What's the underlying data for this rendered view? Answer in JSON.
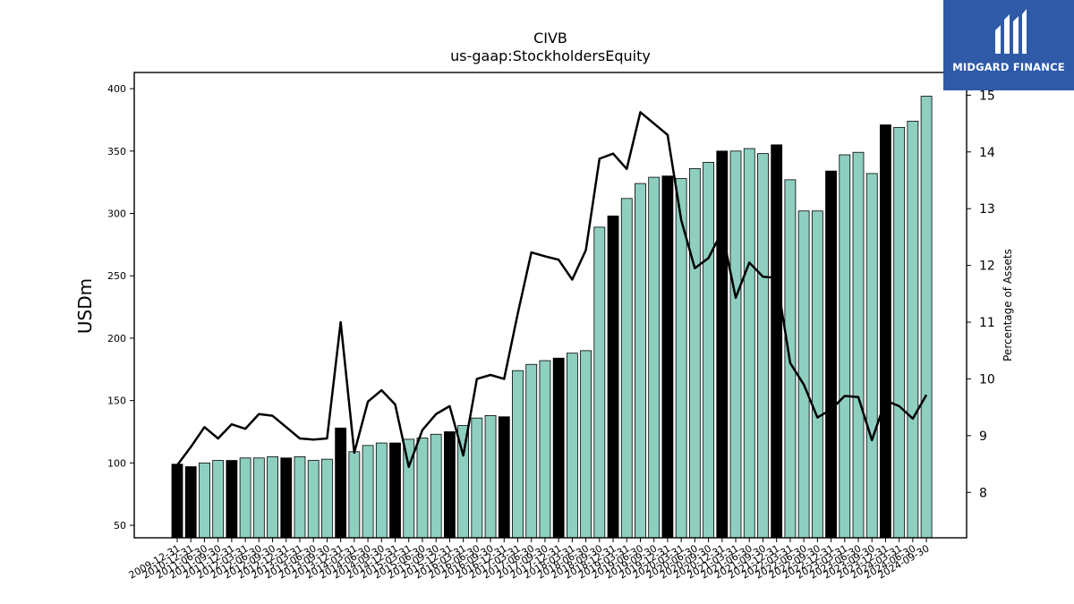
{
  "brand": {
    "name": "MIDGARD FINANCE",
    "color": "#2f5aa8"
  },
  "chart_data": {
    "type": "bar",
    "title": "CIVB",
    "subtitle": "us-gaap:StockholdersEquity",
    "ylabel": "USDm",
    "y2label": "Percentage of Assets",
    "ylim": [
      40,
      413
    ],
    "y2lim": [
      7.2,
      15.4
    ],
    "yticks": [
      50,
      100,
      150,
      200,
      250,
      300,
      350,
      400
    ],
    "y2ticks": [
      8,
      9,
      10,
      11,
      12,
      13,
      14,
      15
    ],
    "bar_colors": {
      "annual": "#000000",
      "quarterly": "#8ecfc0"
    },
    "line_color": "#000000",
    "categories": [
      "2009-12-31",
      "2010-12-31",
      "2011-06-30",
      "2011-09-30",
      "2011-12-31",
      "2012-03-31",
      "2012-06-30",
      "2012-09-30",
      "2012-12-31",
      "2013-03-31",
      "2013-06-30",
      "2013-09-30",
      "2013-12-31",
      "2014-03-31",
      "2014-06-30",
      "2014-09-30",
      "2014-12-31",
      "2015-03-31",
      "2015-06-30",
      "2015-09-30",
      "2015-12-31",
      "2016-03-31",
      "2016-06-30",
      "2016-09-30",
      "2016-12-31",
      "2017-03-31",
      "2017-06-30",
      "2017-09-30",
      "2017-12-31",
      "2018-03-31",
      "2018-06-30",
      "2018-09-30",
      "2018-12-31",
      "2019-03-31",
      "2019-06-30",
      "2019-09-30",
      "2019-12-31",
      "2020-03-31",
      "2020-06-30",
      "2020-09-30",
      "2020-12-31",
      "2021-03-31",
      "2021-06-30",
      "2021-09-30",
      "2021-12-31",
      "2022-03-31",
      "2022-06-30",
      "2022-09-30",
      "2022-12-31",
      "2023-03-31",
      "2023-06-30",
      "2023-09-30",
      "2023-12-31",
      "2024-03-31",
      "2024-06-30",
      "2024-09-30"
    ],
    "values": [
      99,
      97,
      100,
      102,
      102,
      104,
      104,
      105,
      104,
      105,
      102,
      103,
      128,
      109,
      114,
      116,
      116,
      119,
      120,
      123,
      125,
      130,
      136,
      138,
      137,
      174,
      179,
      182,
      184,
      188,
      190,
      289,
      298,
      312,
      324,
      329,
      330,
      328,
      336,
      341,
      350,
      350,
      352,
      348,
      355,
      327,
      302,
      302,
      334,
      347,
      349,
      332,
      371,
      369,
      374,
      394
    ],
    "annual": [
      true,
      true,
      false,
      false,
      true,
      false,
      false,
      false,
      true,
      false,
      false,
      false,
      true,
      false,
      false,
      false,
      true,
      false,
      false,
      false,
      true,
      false,
      false,
      false,
      true,
      false,
      false,
      false,
      true,
      false,
      false,
      false,
      true,
      false,
      false,
      false,
      true,
      false,
      false,
      false,
      true,
      false,
      false,
      false,
      true,
      false,
      false,
      false,
      true,
      false,
      false,
      false,
      true,
      false,
      false,
      false
    ],
    "pct_assets": [
      8.48,
      8.8,
      9.15,
      8.95,
      9.2,
      9.12,
      9.38,
      9.35,
      9.15,
      8.95,
      8.93,
      8.95,
      11.0,
      8.7,
      9.6,
      9.8,
      9.55,
      8.45,
      9.1,
      9.38,
      9.52,
      8.65,
      10.0,
      10.07,
      10.0,
      11.15,
      12.23,
      12.16,
      12.1,
      11.75,
      12.27,
      13.88,
      13.97,
      13.7,
      14.7,
      14.5,
      14.3,
      12.8,
      11.95,
      12.13,
      12.6,
      11.43,
      12.05,
      11.8,
      11.78,
      10.28,
      9.9,
      9.32,
      9.46,
      9.7,
      9.68,
      8.92,
      9.62,
      9.52,
      9.3,
      9.72
    ]
  }
}
